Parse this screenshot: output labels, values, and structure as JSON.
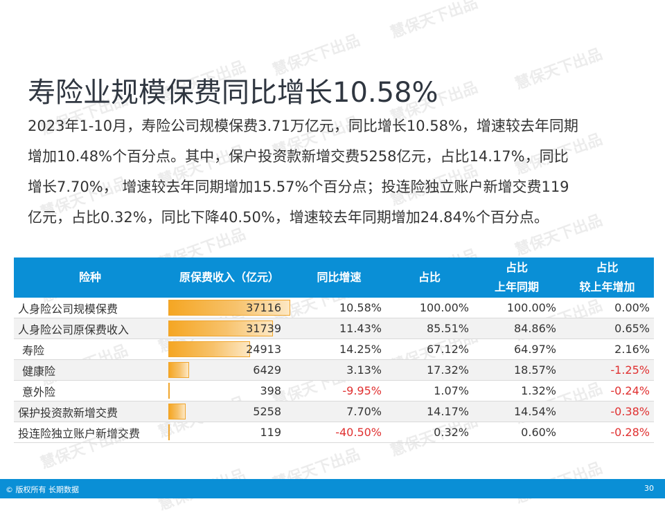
{
  "title": "寿险业规模保费同比增长10.58%",
  "paragraph_lines": [
    "2023年1-10月，寿险公司规模保费3.71万亿元，同比增长10.58%，增速较去年同期",
    "增加10.48%个百分点。其中，保户投资款新增交费5258亿元，占比14.17%，同比",
    "增长7.70%， 增速较去年同期增加15.57%个百分点；投连险独立账户新增交费119",
    "亿元，占比0.32%，同比下降40.50%，增速较去年同期增加24.84%个百分点。"
  ],
  "table": {
    "headers": {
      "type": "险种",
      "premium": "原保费收入（亿元）",
      "yoy": "同比增速",
      "share": "占比",
      "share_ly_1": "占比",
      "share_ly_2": "上年同期",
      "share_inc_1": "占比",
      "share_inc_2": "较上年增加"
    },
    "rows": [
      {
        "name": "人身险公司规模保费",
        "premium": "37116",
        "premium_value": 37116,
        "yoy": "10.58%",
        "share": "100.00%",
        "share_ly": "100.00%",
        "share_inc": "0.00%"
      },
      {
        "name": "人身险公司原保费收入",
        "premium": "31739",
        "premium_value": 31739,
        "yoy": "11.43%",
        "share": "85.51%",
        "share_ly": "84.86%",
        "share_inc": "0.65%"
      },
      {
        "name": "寿险",
        "premium": "24913",
        "premium_value": 24913,
        "yoy": "14.25%",
        "share": "67.12%",
        "share_ly": "64.97%",
        "share_inc": "2.16%"
      },
      {
        "name": "健康险",
        "premium": "6429",
        "premium_value": 6429,
        "yoy": "3.13%",
        "share": "17.32%",
        "share_ly": "18.57%",
        "share_inc": "-1.25%"
      },
      {
        "name": "意外险",
        "premium": "398",
        "premium_value": 398,
        "yoy": "-9.95%",
        "share": "1.07%",
        "share_ly": "1.32%",
        "share_inc": "-0.24%"
      },
      {
        "name": "保护投资款新增交费",
        "premium": "5258",
        "premium_value": 5258,
        "yoy": "7.70%",
        "share": "14.17%",
        "share_ly": "14.54%",
        "share_inc": "-0.38%"
      },
      {
        "name": "投连险独立账户新增交费",
        "premium": "119",
        "premium_value": 119,
        "yoy": "-40.50%",
        "share": "0.32%",
        "share_ly": "0.60%",
        "share_inc": "-0.28%"
      }
    ]
  },
  "footer": {
    "copyright": "© 版权所有 长期数据",
    "page_number": "30"
  },
  "watermark": "慧保天下出品",
  "colors": {
    "header_blue": "#0a8fd6",
    "bar_orange": "#f5a623",
    "negative_red": "#e03030"
  }
}
